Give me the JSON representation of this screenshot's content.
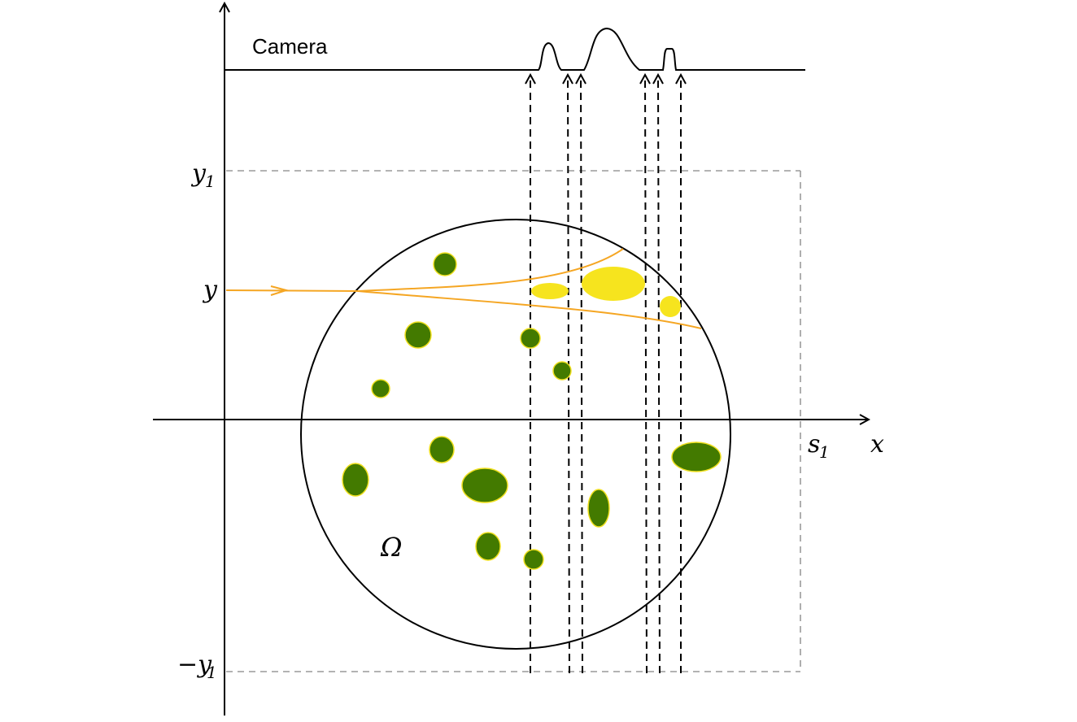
{
  "labels": {
    "camera": "Camera",
    "y1": "y",
    "y1_sub": "1",
    "y": "y",
    "neg_y1": "−y",
    "neg_y1_sub": "1",
    "s1": "s",
    "s1_sub": "1",
    "x": "x",
    "omega": "Ω"
  },
  "colors": {
    "inclusion_fill": "#437a00",
    "inclusion_stroke": "#f0e020",
    "highlight_fill": "#f6e41e",
    "ray": "#f5a623",
    "axis": "#000000",
    "bounding_box": "#9a9a9a"
  }
}
